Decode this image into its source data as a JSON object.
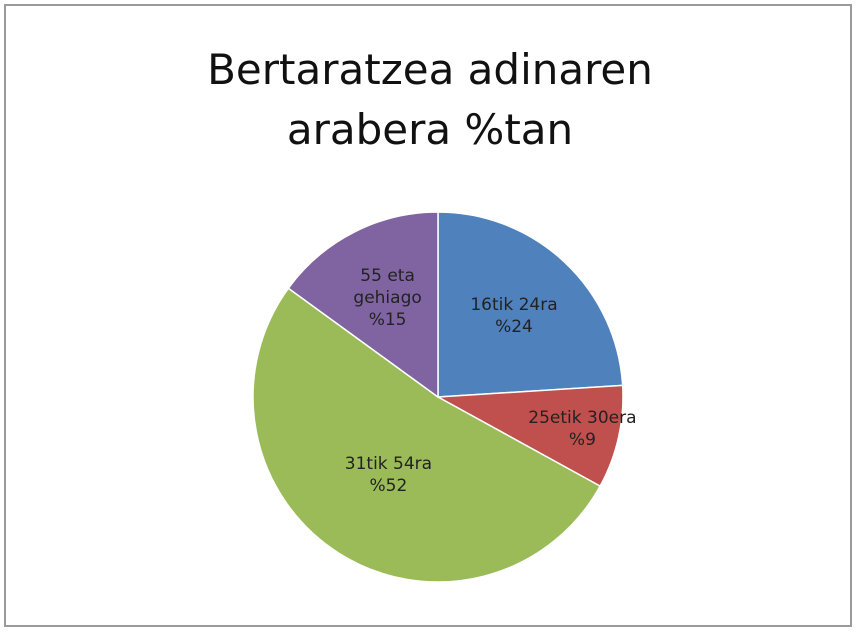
{
  "chart_data": {
    "type": "pie",
    "title": "Bertaratzea adinaren arabera %tan",
    "categories": [
      "16tik 24ra",
      "25etik 30era",
      "31tik 54ra",
      "55 eta gehiago"
    ],
    "values": [
      24,
      9,
      52,
      15
    ],
    "value_labels": [
      "%24",
      "%9",
      "%52",
      "%15"
    ],
    "colors": [
      "#4f81bd",
      "#c0504d",
      "#9bbb59",
      "#8064a2"
    ]
  }
}
